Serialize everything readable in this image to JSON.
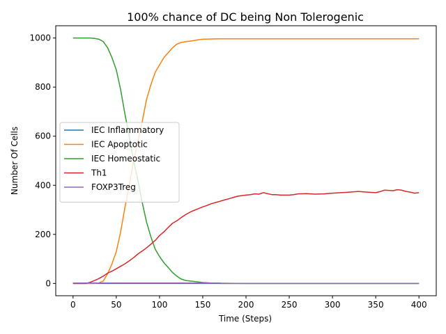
{
  "chart_data": {
    "type": "line",
    "title": "100% chance of DC being Non Tolerogenic",
    "xlabel": "Time (Steps)",
    "ylabel": "Number Of Cells",
    "xlim": [
      -20,
      420
    ],
    "ylim": [
      -50,
      1050
    ],
    "xticks": [
      0,
      50,
      100,
      150,
      200,
      250,
      300,
      350,
      400
    ],
    "yticks": [
      0,
      200,
      400,
      600,
      800,
      1000
    ],
    "grid": false,
    "legend_position": "center-left",
    "series": [
      {
        "name": "IEC Inflammatory",
        "color": "#1f77b4",
        "x": [
          0,
          400
        ],
        "y": [
          0,
          0
        ]
      },
      {
        "name": "IEC Apoptotic",
        "color": "#ff7f0e",
        "x": [
          0,
          25,
          30,
          35,
          40,
          45,
          50,
          55,
          60,
          65,
          70,
          75,
          80,
          85,
          90,
          95,
          100,
          105,
          110,
          115,
          120,
          125,
          130,
          135,
          140,
          145,
          150,
          160,
          170,
          175,
          180,
          200,
          250,
          300,
          350,
          400
        ],
        "y": [
          0,
          0,
          2,
          10,
          40,
          80,
          130,
          210,
          310,
          400,
          500,
          580,
          660,
          750,
          810,
          860,
          890,
          920,
          940,
          960,
          975,
          982,
          985,
          987,
          990,
          993,
          995,
          996,
          997,
          997,
          997,
          997,
          997,
          997,
          997,
          997
        ]
      },
      {
        "name": "IEC Homeostatic",
        "color": "#2ca02c",
        "x": [
          0,
          20,
          25,
          30,
          35,
          40,
          45,
          50,
          55,
          60,
          65,
          70,
          75,
          80,
          85,
          90,
          95,
          100,
          105,
          110,
          115,
          120,
          125,
          130,
          135,
          140,
          145,
          150,
          160,
          170,
          200,
          250,
          300,
          350,
          400
        ],
        "y": [
          1000,
          1000,
          998,
          995,
          985,
          960,
          920,
          870,
          790,
          690,
          600,
          500,
          420,
          330,
          250,
          190,
          140,
          110,
          85,
          65,
          45,
          30,
          18,
          12,
          10,
          8,
          6,
          4,
          2,
          1,
          0,
          0,
          0,
          0,
          0
        ]
      },
      {
        "name": "Th1",
        "color": "#d62728",
        "x": [
          0,
          15,
          20,
          25,
          30,
          35,
          40,
          45,
          50,
          55,
          60,
          65,
          70,
          75,
          80,
          85,
          90,
          95,
          100,
          105,
          110,
          115,
          120,
          125,
          130,
          135,
          140,
          145,
          150,
          155,
          160,
          165,
          170,
          175,
          180,
          185,
          190,
          195,
          200,
          205,
          210,
          215,
          220,
          225,
          230,
          235,
          240,
          245,
          250,
          255,
          260,
          270,
          280,
          290,
          300,
          310,
          320,
          330,
          340,
          350,
          355,
          360,
          370,
          375,
          380,
          385,
          390,
          395,
          400
        ],
        "y": [
          0,
          0,
          5,
          12,
          20,
          30,
          42,
          50,
          60,
          70,
          80,
          92,
          105,
          120,
          132,
          145,
          160,
          175,
          195,
          210,
          228,
          245,
          255,
          268,
          280,
          290,
          298,
          305,
          312,
          318,
          325,
          330,
          335,
          340,
          345,
          350,
          355,
          358,
          360,
          362,
          365,
          364,
          370,
          366,
          362,
          362,
          360,
          360,
          360,
          362,
          365,
          366,
          364,
          365,
          368,
          370,
          372,
          375,
          372,
          370,
          374,
          380,
          378,
          382,
          380,
          375,
          372,
          368,
          370
        ]
      },
      {
        "name": "FOXP3Treg",
        "color": "#9467bd",
        "x": [
          0,
          150,
          170,
          171,
          400
        ],
        "y": [
          2,
          2,
          2,
          0,
          0
        ]
      }
    ]
  }
}
